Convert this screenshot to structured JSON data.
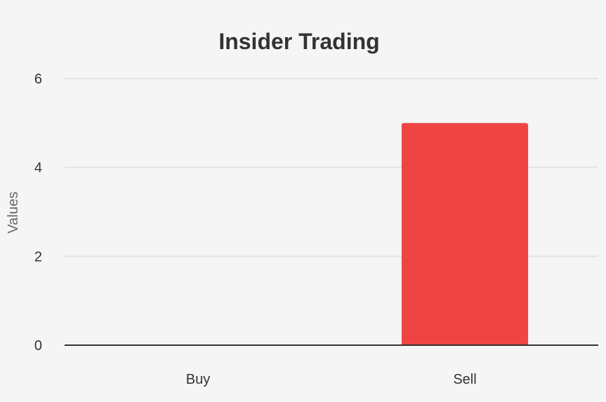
{
  "chart_data": {
    "type": "bar",
    "title": "Insider Trading",
    "xlabel": "",
    "ylabel": "Values",
    "categories": [
      "Buy",
      "Sell"
    ],
    "values": [
      0,
      5
    ],
    "ylim": [
      0,
      6
    ],
    "yticks": [
      0,
      2,
      4,
      6
    ],
    "grid": true,
    "legend": "none",
    "bar_color": "#ef4444",
    "background": "#f5f5f5"
  }
}
